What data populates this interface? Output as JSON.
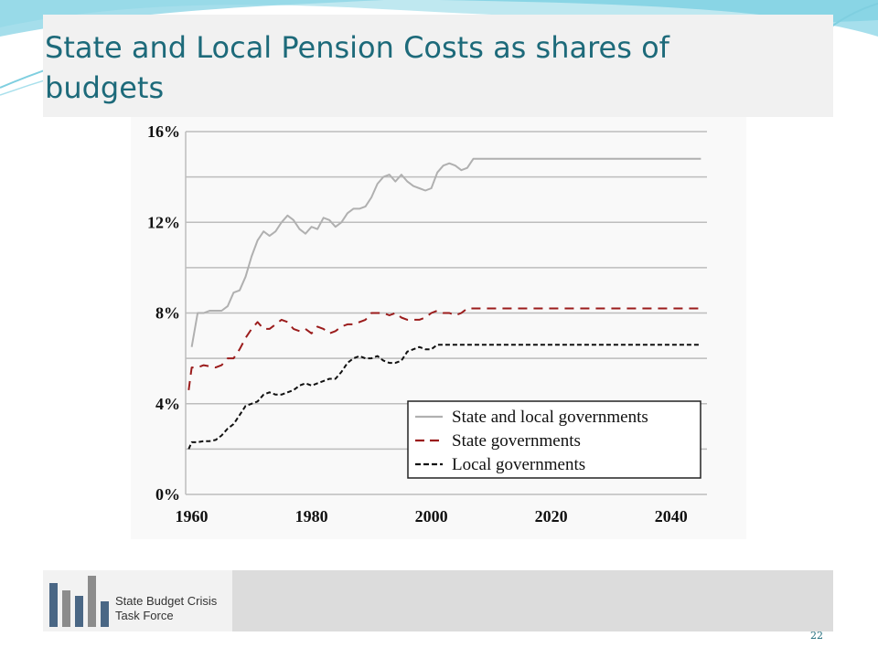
{
  "slide": {
    "title": "State and Local Pension Costs as shares of budgets",
    "page_number": "22",
    "colors": {
      "title": "#1d6a7a",
      "accent": "#7fd3e3"
    }
  },
  "footer": {
    "logo_line1": "State Budget Crisis",
    "logo_line2": "Task Force",
    "logo_icon": "bar-chart-logo-icon"
  },
  "chart_data": {
    "type": "line",
    "title": "",
    "xlabel": "",
    "ylabel": "",
    "xlim": [
      1959,
      2046
    ],
    "ylim": [
      0,
      16
    ],
    "x_ticks": [
      1960,
      1980,
      2000,
      2020,
      2040
    ],
    "x_tick_labels": [
      "1960",
      "1980",
      "2000",
      "2020",
      "2040"
    ],
    "y_ticks": [
      0,
      4,
      8,
      12,
      16
    ],
    "y_tick_labels": [
      "0%",
      "4%",
      "8%",
      "12%",
      "16%"
    ],
    "gridlines_y": [
      0,
      2,
      4,
      6,
      8,
      10,
      12,
      14,
      16
    ],
    "grid": true,
    "legend": {
      "placement": "bottom-right"
    },
    "series": [
      {
        "name": "State and local governments",
        "color": "#b0b0b0",
        "dash": "solid",
        "x": [
          1960,
          1961,
          1962,
          1963,
          1964,
          1965,
          1966,
          1967,
          1968,
          1969,
          1970,
          1971,
          1972,
          1973,
          1974,
          1975,
          1976,
          1977,
          1978,
          1979,
          1980,
          1981,
          1982,
          1983,
          1984,
          1985,
          1986,
          1987,
          1988,
          1989,
          1990,
          1991,
          1992,
          1993,
          1994,
          1995,
          1996,
          1997,
          1998,
          1999,
          2000,
          2001,
          2002,
          2003,
          2004,
          2005,
          2006,
          2007,
          2008,
          2009,
          2010,
          2045
        ],
        "values": [
          6.5,
          8.0,
          8.0,
          8.1,
          8.1,
          8.1,
          8.3,
          8.9,
          9.0,
          9.6,
          10.5,
          11.2,
          11.6,
          11.4,
          11.6,
          12.0,
          12.3,
          12.1,
          11.7,
          11.5,
          11.8,
          11.7,
          12.2,
          12.1,
          11.8,
          12.0,
          12.4,
          12.6,
          12.6,
          12.7,
          13.1,
          13.7,
          14.0,
          14.1,
          13.8,
          14.1,
          13.8,
          13.6,
          13.5,
          13.4,
          13.5,
          14.2,
          14.5,
          14.6,
          14.5,
          14.3,
          14.4,
          14.8,
          14.8,
          14.8,
          14.8,
          14.8
        ]
      },
      {
        "name": "State governments",
        "color": "#9b1c1c",
        "dash": "dashed",
        "x": [
          1959.5,
          1960,
          1961,
          1962,
          1963,
          1964,
          1965,
          1966,
          1967,
          1968,
          1969,
          1970,
          1971,
          1972,
          1973,
          1974,
          1975,
          1976,
          1977,
          1978,
          1979,
          1980,
          1981,
          1982,
          1983,
          1984,
          1985,
          1986,
          1987,
          1988,
          1989,
          1990,
          1991,
          1992,
          1993,
          1994,
          1995,
          1996,
          1997,
          1998,
          1999,
          2000,
          2001,
          2002,
          2003,
          2004,
          2005,
          2006,
          2007,
          2008,
          2010,
          2045
        ],
        "values": [
          4.6,
          5.6,
          5.6,
          5.7,
          5.65,
          5.6,
          5.7,
          6.0,
          6.0,
          6.4,
          6.9,
          7.3,
          7.6,
          7.3,
          7.3,
          7.5,
          7.7,
          7.6,
          7.3,
          7.2,
          7.3,
          7.1,
          7.4,
          7.3,
          7.1,
          7.2,
          7.4,
          7.5,
          7.5,
          7.6,
          7.7,
          8.0,
          8.0,
          8.0,
          7.9,
          8.0,
          7.8,
          7.7,
          7.7,
          7.7,
          7.8,
          8.0,
          8.1,
          8.0,
          8.0,
          7.9,
          8.0,
          8.2,
          8.2,
          8.2,
          8.2,
          8.2
        ]
      },
      {
        "name": "Local governments",
        "color": "#111111",
        "dash": "dashed",
        "x": [
          1959.5,
          1960,
          1961,
          1962,
          1963,
          1964,
          1965,
          1966,
          1967,
          1968,
          1969,
          1970,
          1971,
          1972,
          1973,
          1974,
          1975,
          1976,
          1977,
          1978,
          1979,
          1980,
          1981,
          1982,
          1983,
          1984,
          1985,
          1986,
          1987,
          1988,
          1989,
          1990,
          1991,
          1992,
          1993,
          1994,
          1995,
          1996,
          1997,
          1998,
          1999,
          2000,
          2001,
          2002,
          2003,
          2004,
          2005,
          2006,
          2007,
          2008,
          2010,
          2045
        ],
        "values": [
          2.0,
          2.3,
          2.3,
          2.35,
          2.35,
          2.4,
          2.6,
          2.9,
          3.1,
          3.5,
          3.9,
          4.0,
          4.1,
          4.4,
          4.5,
          4.4,
          4.4,
          4.5,
          4.6,
          4.8,
          4.9,
          4.8,
          4.9,
          5.0,
          5.1,
          5.1,
          5.4,
          5.8,
          6.0,
          6.1,
          6.0,
          6.0,
          6.1,
          5.9,
          5.8,
          5.8,
          5.9,
          6.3,
          6.4,
          6.5,
          6.4,
          6.4,
          6.6,
          6.6,
          6.6,
          6.6,
          6.6,
          6.6,
          6.6,
          6.6,
          6.6,
          6.6
        ]
      }
    ]
  }
}
